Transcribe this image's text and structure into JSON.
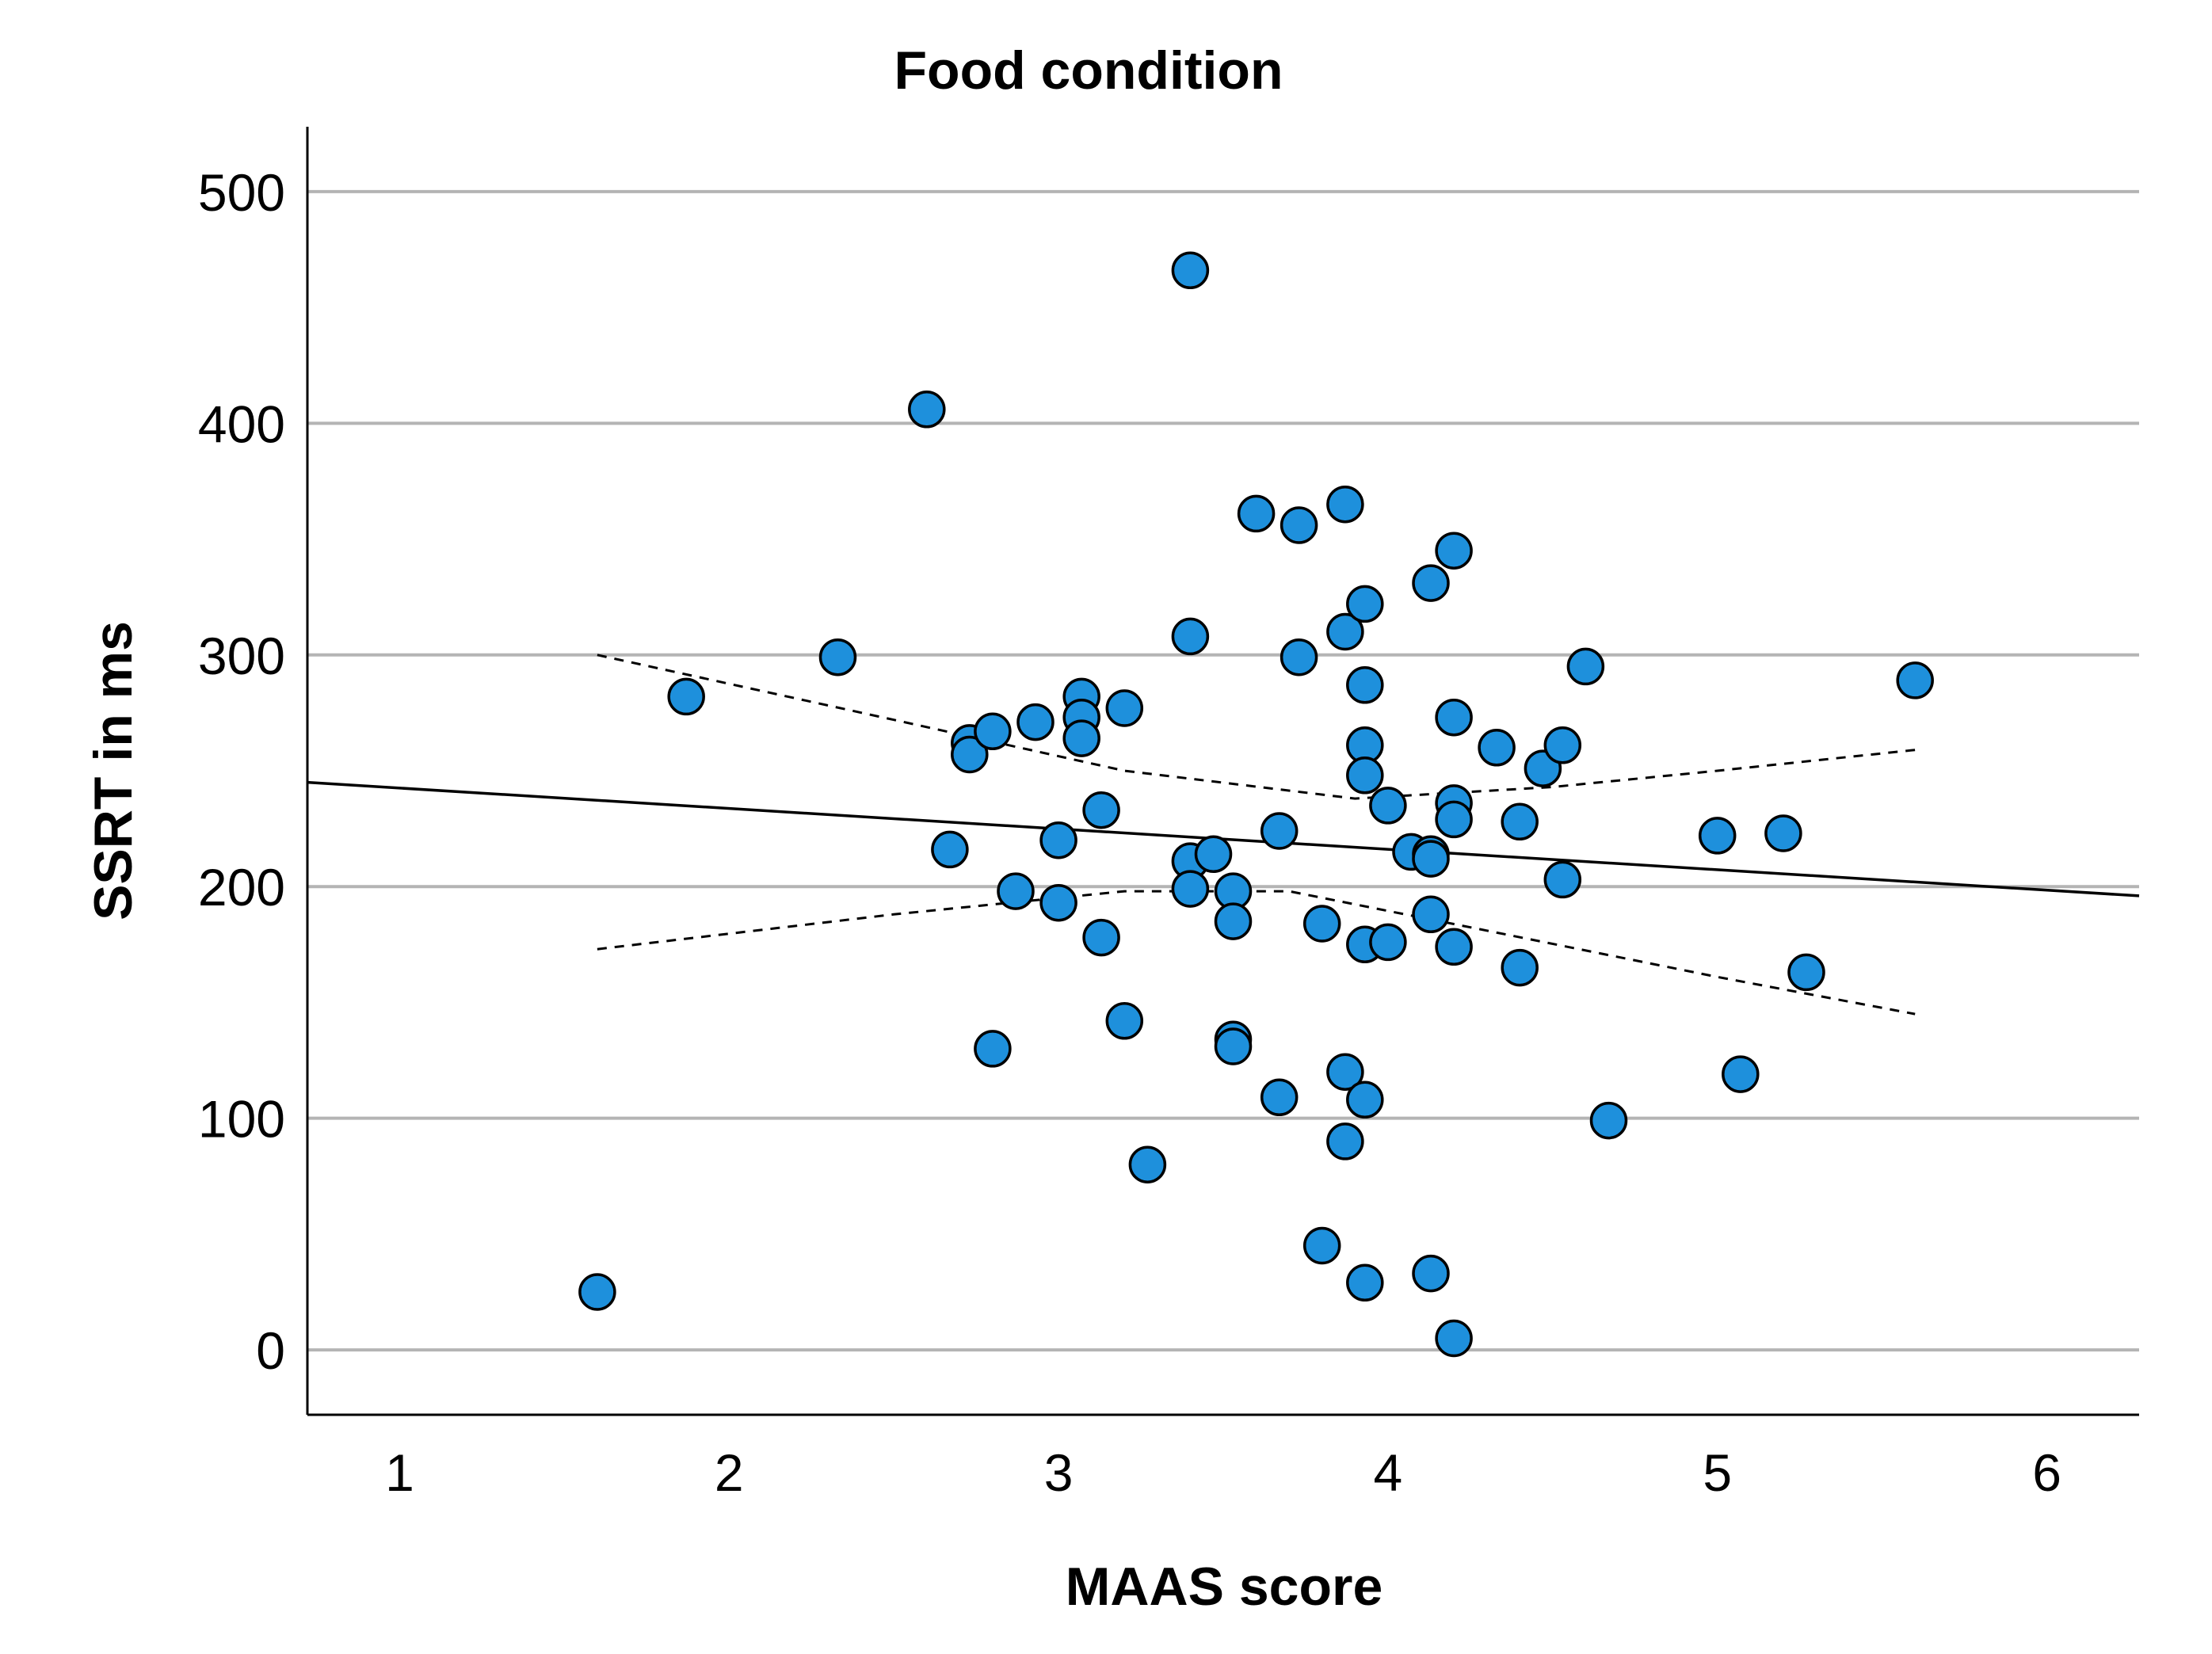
{
  "chart_data": {
    "type": "scatter",
    "title": "Food condition",
    "xlabel": "MAAS score",
    "ylabel": "SSRT in ms",
    "xlim": [
      0.72,
      6.28
    ],
    "ylim": [
      -28,
      528
    ],
    "xticks": [
      1,
      2,
      3,
      4,
      5,
      6
    ],
    "yticks": [
      0,
      100,
      200,
      300,
      400,
      500
    ],
    "grid": "horizontal",
    "x": [
      1.6,
      1.87,
      2.33,
      2.6,
      2.67,
      2.73,
      2.73,
      2.8,
      2.8,
      2.87,
      2.93,
      3.0,
      3.0,
      3.07,
      3.07,
      3.07,
      3.13,
      3.13,
      3.2,
      3.2,
      3.27,
      3.4,
      3.4,
      3.4,
      3.4,
      3.47,
      3.53,
      3.53,
      3.53,
      3.53,
      3.6,
      3.67,
      3.67,
      3.73,
      3.73,
      3.8,
      3.8,
      3.87,
      3.87,
      3.87,
      3.87,
      3.93,
      3.93,
      3.93,
      3.93,
      3.93,
      3.93,
      3.93,
      4.0,
      4.0,
      4.07,
      4.13,
      4.13,
      4.13,
      4.13,
      4.13,
      4.2,
      4.2,
      4.2,
      4.2,
      4.2,
      4.2,
      4.33,
      4.4,
      4.4,
      4.47,
      4.53,
      4.53,
      4.6,
      4.67,
      5.0,
      5.07,
      5.2,
      5.27,
      5.6
    ],
    "y": [
      25,
      282,
      299,
      406,
      216,
      262,
      257,
      267,
      130,
      198,
      271,
      220,
      193,
      282,
      273,
      264,
      233,
      178,
      277,
      142,
      80,
      466,
      308,
      211,
      199,
      214,
      198,
      185,
      134,
      131,
      361,
      224,
      109,
      356,
      299,
      184,
      45,
      365,
      310,
      120,
      90,
      322,
      287,
      261,
      248,
      175,
      108,
      29,
      235,
      176,
      215,
      331,
      214,
      212,
      188,
      33,
      345,
      273,
      236,
      229,
      174,
      5,
      260,
      228,
      165,
      251,
      261,
      203,
      295,
      99,
      222,
      119,
      223,
      163,
      289
    ],
    "fit_line": {
      "x": [
        0.72,
        6.28
      ],
      "y": [
        245,
        196
      ]
    },
    "ci_upper": {
      "x": [
        1.6,
        2.5,
        3.2,
        3.9,
        4.5,
        5.0,
        5.6
      ],
      "y": [
        300,
        272,
        250,
        238,
        243,
        250,
        259
      ]
    },
    "ci_lower": {
      "x": [
        1.6,
        2.5,
        3.2,
        3.7,
        4.3,
        5.0,
        5.6
      ],
      "y": [
        173,
        188,
        198,
        198,
        181,
        161,
        145
      ]
    }
  }
}
